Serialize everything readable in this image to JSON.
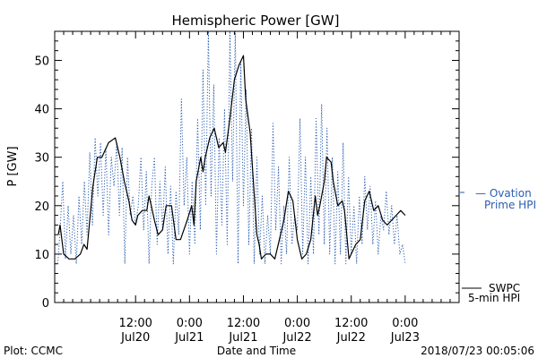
{
  "chart_data": {
    "type": "line",
    "title": "Hemispheric Power [GW]",
    "xlabel": "Date and Time",
    "ylabel": "P [GW]",
    "ylim": [
      0,
      56
    ],
    "xlim": [
      -18,
      72
    ],
    "grid": false,
    "y_ticks": [
      0,
      10,
      20,
      30,
      40,
      50
    ],
    "x_ticks": [
      {
        "x": 0,
        "time": "12:00",
        "date": "Jul20"
      },
      {
        "x": 12,
        "time": "0:00",
        "date": "Jul21"
      },
      {
        "x": 24,
        "time": "12:00",
        "date": "Jul21"
      },
      {
        "x": 36,
        "time": "0:00",
        "date": "Jul22"
      },
      {
        "x": 48,
        "time": "12:00",
        "date": "Jul22"
      },
      {
        "x": 60,
        "time": "0:00",
        "date": "Jul23"
      }
    ],
    "x_note": "x = hours relative to 2018-07-20 12:00",
    "series": [
      {
        "name": "SWPC 5-min HPI",
        "color": "#000000",
        "style": "solid",
        "x": [
          -17.2,
          -16.8,
          -16.0,
          -14.8,
          -13.5,
          -12.3,
          -11.5,
          -10.8,
          -9.5,
          -8.5,
          -7.5,
          -6.0,
          -4.5,
          -3.5,
          -2.5,
          -1.5,
          -0.8,
          0.0,
          0.5,
          1.5,
          2.5,
          3.0,
          3.5,
          4.2,
          5.0,
          6.0,
          6.8,
          8.0,
          9.0,
          10.0,
          11.5,
          12.5,
          13.0,
          13.5,
          14.5,
          15.0,
          15.5,
          16.5,
          17.5,
          18.5,
          19.5,
          20.0,
          21.0,
          21.5,
          22.0,
          23.0,
          24.0,
          24.5,
          25.5,
          26.0,
          27.0,
          27.5,
          28.0,
          29.0,
          30.0,
          31.0,
          32.0,
          33.0,
          34.0,
          35.0,
          36.0,
          37.0,
          38.0,
          39.0,
          40.0,
          40.5,
          41.0,
          42.0,
          42.5,
          43.5,
          44.0,
          45.0,
          46.0,
          46.5,
          47.5,
          48.0,
          49.0,
          50.0,
          51.0,
          52.0,
          53.0,
          54.0,
          55.0,
          56.0,
          57.0,
          58.0,
          59.0,
          60.0
        ],
        "y": [
          14,
          16,
          10,
          9,
          9,
          10,
          12,
          11,
          24,
          30,
          30,
          33,
          34,
          30,
          25,
          21,
          17,
          16,
          18,
          19,
          19,
          22,
          20,
          17,
          14,
          15,
          20,
          20,
          13,
          13,
          17,
          20,
          16,
          25,
          30,
          27,
          30,
          34,
          36,
          32,
          33,
          31,
          38,
          42,
          46,
          49,
          51,
          42,
          35,
          28,
          14,
          12,
          9,
          10,
          10,
          9,
          13,
          17,
          23,
          21,
          13,
          9,
          10,
          13,
          22,
          18,
          20,
          25,
          30,
          29,
          25,
          20,
          21,
          19,
          9,
          10,
          12,
          13,
          21,
          23,
          19,
          20,
          17,
          16,
          17,
          18,
          19,
          18
        ]
      },
      {
        "name": "Ovation Prime HPI",
        "color": "#2a5db0",
        "style": "dotted",
        "x": [
          -17.3,
          -16.8,
          -16.2,
          -15.6,
          -15.0,
          -14.4,
          -13.8,
          -13.2,
          -12.6,
          -12.0,
          -11.4,
          -10.8,
          -10.2,
          -9.6,
          -9.0,
          -8.4,
          -7.8,
          -7.2,
          -6.6,
          -6.0,
          -5.4,
          -4.8,
          -4.2,
          -3.6,
          -3.0,
          -2.4,
          -1.8,
          -1.2,
          -0.6,
          0.0,
          0.6,
          1.2,
          1.8,
          2.4,
          3.0,
          3.6,
          4.2,
          4.8,
          5.4,
          6.0,
          6.6,
          7.2,
          7.8,
          8.4,
          9.0,
          9.6,
          10.2,
          10.8,
          11.4,
          12.0,
          12.6,
          13.2,
          13.8,
          14.4,
          15.0,
          15.6,
          16.2,
          16.8,
          17.4,
          18.0,
          18.6,
          19.2,
          19.8,
          20.4,
          21.0,
          21.6,
          22.2,
          22.8,
          23.4,
          24.0,
          24.6,
          25.2,
          25.8,
          26.4,
          27.0,
          27.6,
          28.2,
          28.8,
          29.4,
          30.0,
          30.6,
          31.2,
          31.8,
          32.4,
          33.0,
          33.6,
          34.2,
          34.8,
          35.4,
          36.0,
          36.6,
          37.2,
          37.8,
          38.4,
          39.0,
          39.6,
          40.2,
          40.8,
          41.4,
          42.0,
          42.6,
          43.2,
          43.8,
          44.4,
          45.0,
          45.6,
          46.2,
          46.8,
          47.4,
          48.0,
          48.6,
          49.2,
          49.8,
          50.4,
          51.0,
          51.6,
          52.2,
          52.8,
          53.4,
          54.0,
          54.6,
          55.2,
          55.8,
          56.4,
          57.0,
          57.6,
          58.2,
          58.8,
          59.4,
          60.0
        ],
        "y": [
          8,
          15,
          25,
          9,
          20,
          10,
          18,
          8,
          22,
          12,
          25,
          14,
          31,
          16,
          34,
          22,
          33,
          18,
          32,
          14,
          30,
          24,
          33,
          18,
          32,
          8,
          30,
          18,
          22,
          16,
          20,
          30,
          15,
          27,
          8,
          24,
          30,
          12,
          25,
          15,
          28,
          10,
          24,
          8,
          23,
          14,
          42,
          20,
          30,
          10,
          25,
          12,
          38,
          15,
          48,
          20,
          56,
          22,
          45,
          10,
          34,
          16,
          40,
          12,
          56,
          25,
          56,
          8,
          50,
          20,
          44,
          12,
          36,
          8,
          30,
          10,
          22,
          8,
          18,
          10,
          37,
          15,
          28,
          8,
          20,
          10,
          30,
          12,
          18,
          15,
          38,
          10,
          30,
          8,
          26,
          10,
          38,
          14,
          41,
          12,
          36,
          10,
          30,
          8,
          27,
          10,
          33,
          8,
          26,
          10,
          20,
          8,
          22,
          12,
          26,
          15,
          24,
          12,
          21,
          10,
          18,
          15,
          23,
          14,
          20,
          12,
          18,
          10,
          12,
          8
        ]
      }
    ],
    "legend": [
      {
        "line1": "— Ovation",
        "line2": "Prime HPI",
        "color": "#2a5db0"
      },
      {
        "line1": "SWPC",
        "line2": "5-min HPI",
        "color": "#000000"
      }
    ],
    "legend_position": "right"
  },
  "footer": {
    "left": "Plot: CCMC",
    "center": "Date and Time",
    "right": "2018/07/23 00:05:06"
  }
}
